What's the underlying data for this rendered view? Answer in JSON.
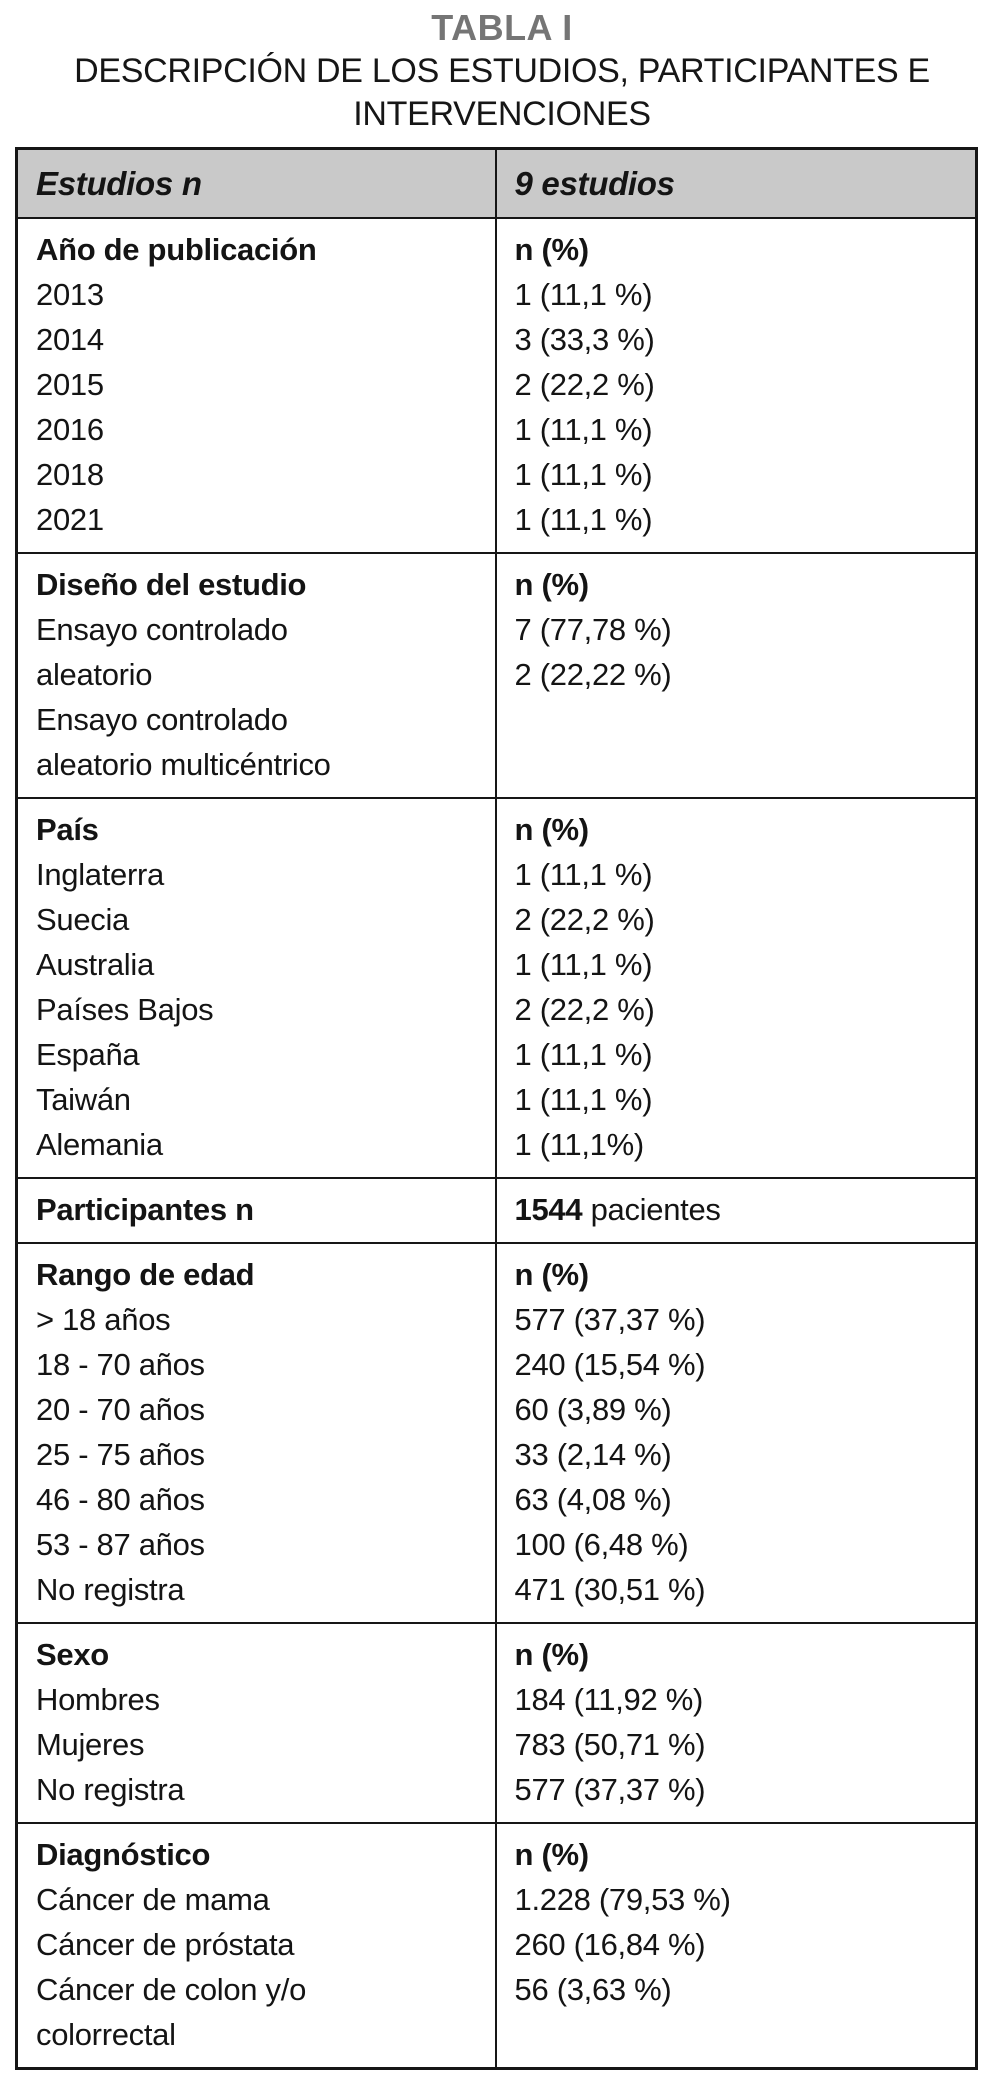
{
  "caption": {
    "title": "TABLA I",
    "subtitle_line1": "DESCRIPCIÓN DE LOS ESTUDIOS, PARTICIPANTES E",
    "subtitle_line2": "INTERVENCIONES"
  },
  "colors": {
    "caption_title_gray": "#757575",
    "header_row_background": "#c9c9c9",
    "border_black": "#161616"
  },
  "table": {
    "header": {
      "left": "Estudios n",
      "right": "9 estudios"
    },
    "sections": [
      {
        "id": "publication-year",
        "left": [
          [
            {
              "text": "Año de publicación",
              "bold": true
            }
          ],
          [
            {
              "text": "2013",
              "bold": false
            }
          ],
          [
            {
              "text": "2014",
              "bold": false
            }
          ],
          [
            {
              "text": "2015",
              "bold": false
            }
          ],
          [
            {
              "text": "2016",
              "bold": false
            }
          ],
          [
            {
              "text": "2018",
              "bold": false
            }
          ],
          [
            {
              "text": "2021",
              "bold": false
            }
          ]
        ],
        "right": [
          [
            {
              "text": "n (%)",
              "bold": true
            }
          ],
          [
            {
              "text": "1 (11,1 %)",
              "bold": false
            }
          ],
          [
            {
              "text": "3 (33,3 %)",
              "bold": false
            }
          ],
          [
            {
              "text": "2 (22,2 %)",
              "bold": false
            }
          ],
          [
            {
              "text": "1 (11,1 %)",
              "bold": false
            }
          ],
          [
            {
              "text": "1 (11,1 %)",
              "bold": false
            }
          ],
          [
            {
              "text": "1 (11,1 %)",
              "bold": false
            }
          ]
        ]
      },
      {
        "id": "study-design",
        "left": [
          [
            {
              "text": "Diseño del estudio",
              "bold": true
            }
          ],
          [
            {
              "text": "Ensayo controlado",
              "bold": false
            }
          ],
          [
            {
              "text": "aleatorio",
              "bold": false
            }
          ],
          [
            {
              "text": "Ensayo controlado",
              "bold": false
            }
          ],
          [
            {
              "text": "aleatorio multicéntrico",
              "bold": false
            }
          ]
        ],
        "right": [
          [
            {
              "text": "n (%)",
              "bold": true
            }
          ],
          [
            {
              "text": "7 (77,78 %)",
              "bold": false
            }
          ],
          [
            {
              "text": "2 (22,22 %)",
              "bold": false
            }
          ]
        ]
      },
      {
        "id": "country",
        "left": [
          [
            {
              "text": "País",
              "bold": true
            }
          ],
          [
            {
              "text": "Inglaterra",
              "bold": false
            }
          ],
          [
            {
              "text": "Suecia",
              "bold": false
            }
          ],
          [
            {
              "text": "Australia",
              "bold": false
            }
          ],
          [
            {
              "text": "Países Bajos",
              "bold": false
            }
          ],
          [
            {
              "text": "España",
              "bold": false
            }
          ],
          [
            {
              "text": "Taiwán",
              "bold": false
            }
          ],
          [
            {
              "text": "Alemania",
              "bold": false
            }
          ]
        ],
        "right": [
          [
            {
              "text": "n (%)",
              "bold": true
            }
          ],
          [
            {
              "text": "1 (11,1 %)",
              "bold": false
            }
          ],
          [
            {
              "text": "2 (22,2 %)",
              "bold": false
            }
          ],
          [
            {
              "text": "1 (11,1 %)",
              "bold": false
            }
          ],
          [
            {
              "text": "2 (22,2 %)",
              "bold": false
            }
          ],
          [
            {
              "text": "1 (11,1 %)",
              "bold": false
            }
          ],
          [
            {
              "text": "1 (11,1 %)",
              "bold": false
            }
          ],
          [
            {
              "text": "1 (11,1%)",
              "bold": false
            }
          ]
        ]
      },
      {
        "id": "participants",
        "left": [
          [
            {
              "text": "Participantes n",
              "bold": true
            }
          ]
        ],
        "right": [
          [
            {
              "text": "1544",
              "bold": true
            },
            {
              "text": " pacientes",
              "bold": false
            }
          ]
        ]
      },
      {
        "id": "age-range",
        "left": [
          [
            {
              "text": "Rango de edad",
              "bold": true
            }
          ],
          [
            {
              "text": "> 18 años",
              "bold": false
            }
          ],
          [
            {
              "text": "18 - 70 años",
              "bold": false
            }
          ],
          [
            {
              "text": "20 - 70 años",
              "bold": false
            }
          ],
          [
            {
              "text": "25 - 75 años",
              "bold": false
            }
          ],
          [
            {
              "text": "46 - 80 años",
              "bold": false
            }
          ],
          [
            {
              "text": "53 - 87 años",
              "bold": false
            }
          ],
          [
            {
              "text": "No registra",
              "bold": false
            }
          ]
        ],
        "right": [
          [
            {
              "text": "n (%)",
              "bold": true
            }
          ],
          [
            {
              "text": "577 (37,37 %)",
              "bold": false
            }
          ],
          [
            {
              "text": "240 (15,54 %)",
              "bold": false
            }
          ],
          [
            {
              "text": "60 (3,89 %)",
              "bold": false
            }
          ],
          [
            {
              "text": "33 (2,14 %)",
              "bold": false
            }
          ],
          [
            {
              "text": "63 (4,08 %)",
              "bold": false
            }
          ],
          [
            {
              "text": "100 (6,48 %)",
              "bold": false
            }
          ],
          [
            {
              "text": "471 (30,51 %)",
              "bold": false
            }
          ]
        ]
      },
      {
        "id": "sex",
        "left": [
          [
            {
              "text": "Sexo",
              "bold": true
            }
          ],
          [
            {
              "text": "Hombres",
              "bold": false
            }
          ],
          [
            {
              "text": "Mujeres",
              "bold": false
            }
          ],
          [
            {
              "text": "No registra",
              "bold": false
            }
          ]
        ],
        "right": [
          [
            {
              "text": "n (%)",
              "bold": true
            }
          ],
          [
            {
              "text": "184 (11,92 %)",
              "bold": false
            }
          ],
          [
            {
              "text": "783 (50,71 %)",
              "bold": false
            }
          ],
          [
            {
              "text": "577 (37,37 %)",
              "bold": false
            }
          ]
        ]
      },
      {
        "id": "diagnosis",
        "left": [
          [
            {
              "text": "Diagnóstico",
              "bold": true
            }
          ],
          [
            {
              "text": "Cáncer de mama",
              "bold": false
            }
          ],
          [
            {
              "text": "Cáncer de próstata",
              "bold": false
            }
          ],
          [
            {
              "text": "Cáncer de colon y/o",
              "bold": false
            }
          ],
          [
            {
              "text": "colorrectal",
              "bold": false
            }
          ]
        ],
        "right": [
          [
            {
              "text": "n (%)",
              "bold": true
            }
          ],
          [
            {
              "text": "1.228 (79,53 %)",
              "bold": false
            }
          ],
          [
            {
              "text": "260 (16,84 %)",
              "bold": false
            }
          ],
          [
            {
              "text": "56 (3,63 %)",
              "bold": false
            }
          ]
        ]
      }
    ]
  }
}
